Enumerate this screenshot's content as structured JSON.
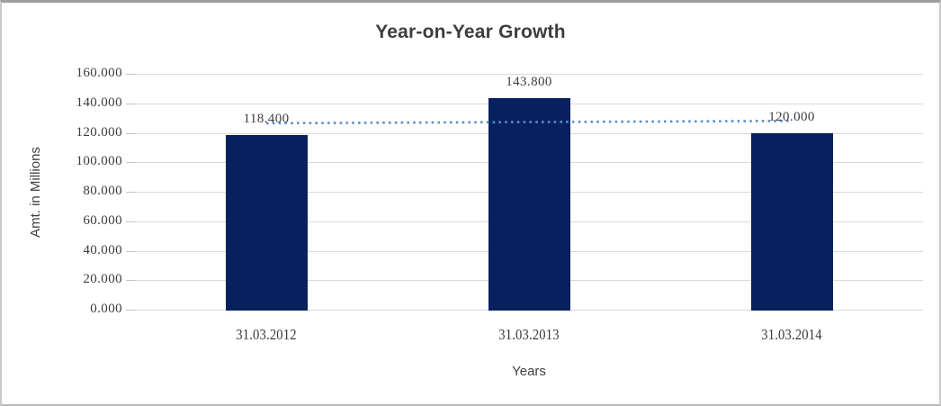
{
  "chart_data": {
    "type": "bar",
    "title": "Year-on-Year Growth",
    "xlabel": "Years",
    "ylabel": "Amt. in Millions",
    "categories": [
      "31.03.2012",
      "31.03.2013",
      "31.03.2014"
    ],
    "values": [
      118.4,
      143.8,
      120.0
    ],
    "data_labels": [
      "118.400",
      "143.800",
      "120.000"
    ],
    "y_tick_labels": [
      "160.000",
      "140.000",
      "120.000",
      "100.000",
      "80.000",
      "60.000",
      "40.000",
      "20.000",
      "0.000"
    ],
    "ylim": [
      0,
      160
    ],
    "y_step": 20,
    "grid": true,
    "legend": false,
    "trendline": {
      "type": "linear",
      "style": "dotted",
      "span": "first-to-last-bar-center"
    },
    "colors": {
      "bar": "#08215e",
      "gridline": "#d9d9d9",
      "trendline": "#5b8ec9",
      "text": "#404040",
      "frame": "#c9c9c9"
    }
  }
}
